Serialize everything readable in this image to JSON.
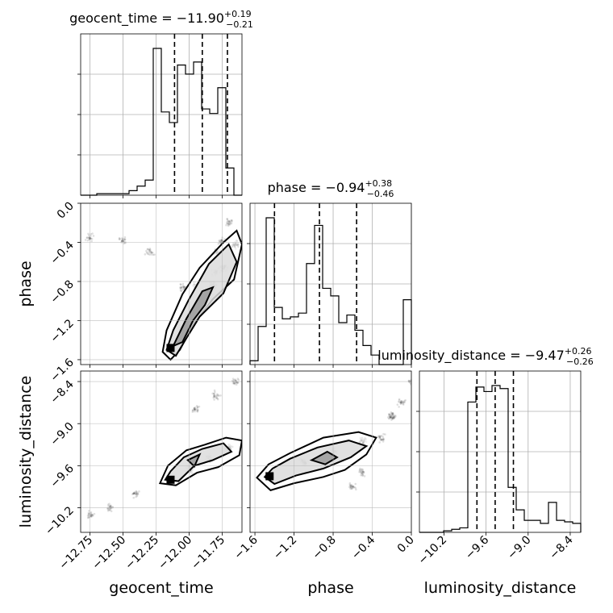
{
  "chart_data": {
    "type": "corner",
    "parameters": [
      {
        "name": "geocent_time",
        "xlabel": "geocent_time",
        "range": [
          -12.82,
          -11.6
        ],
        "ticks": [
          -12.75,
          -12.5,
          -12.25,
          -12.0,
          -11.75
        ],
        "tick_labels": [
          "−12.75",
          "−12.50",
          "−12.25",
          "−12.00",
          "−11.75"
        ],
        "title": {
          "main": "geocent_time = −11.90",
          "sup": "+0.19",
          "sub": "−0.21"
        },
        "quantiles": [
          -12.11,
          -11.9,
          -11.71
        ],
        "histogram": {
          "edges": [
            -12.82,
            -12.759,
            -12.698,
            -12.637,
            -12.576,
            -12.515,
            -12.454,
            -12.393,
            -12.332,
            -12.271,
            -12.21,
            -12.149,
            -12.088,
            -12.027,
            -11.966,
            -11.905,
            -11.844,
            -11.783,
            -11.722,
            -11.661,
            -11.6
          ],
          "counts": [
            0.0,
            0.0,
            0.01,
            0.01,
            0.01,
            0.01,
            0.03,
            0.06,
            0.1,
            0.97,
            0.55,
            0.48,
            0.86,
            0.8,
            0.88,
            0.57,
            0.54,
            0.71,
            0.18,
            0.0
          ]
        }
      },
      {
        "name": "phase",
        "ylabel": "phase",
        "xlabel": "phase",
        "range": [
          -1.65,
          0.0
        ],
        "ticks": [
          -1.6,
          -1.2,
          -0.8,
          -0.4,
          0.0
        ],
        "tick_labels": [
          "−1.6",
          "−1.2",
          "−0.8",
          "−0.4",
          "0.0"
        ],
        "title": {
          "main": "phase = −0.94",
          "sup": "+0.38",
          "sub": "−0.46"
        },
        "quantiles": [
          -1.4,
          -0.94,
          -0.56
        ],
        "histogram": {
          "edges": [
            -1.65,
            -1.5675,
            -1.485,
            -1.4025,
            -1.32,
            -1.2375,
            -1.155,
            -1.0725,
            -0.99,
            -0.9075,
            -0.825,
            -0.7425,
            -0.66,
            -0.5775,
            -0.495,
            -0.4125,
            -0.33,
            -0.2475,
            -0.165,
            -0.0825,
            0.0
          ],
          "counts": [
            0.02,
            0.2,
            0.77,
            0.3,
            0.24,
            0.25,
            0.27,
            0.53,
            0.73,
            0.4,
            0.36,
            0.22,
            0.26,
            0.18,
            0.1,
            0.05,
            0.0,
            0.0,
            0.0,
            0.34
          ]
        }
      },
      {
        "name": "luminosity_distance",
        "ylabel": "luminosity_distance",
        "xlabel": "luminosity_distance",
        "range": [
          -10.55,
          -8.25
        ],
        "ticks": [
          -10.2,
          -9.6,
          -9.0,
          -8.4
        ],
        "tick_labels": [
          "−10.2",
          "−9.6",
          "−9.0",
          "−8.4"
        ],
        "title": {
          "main": "luminosity_distance = −9.47",
          "sup": "+0.26",
          "sub": "−0.26"
        },
        "quantiles": [
          -9.73,
          -9.47,
          -9.21
        ],
        "histogram": {
          "edges": [
            -10.55,
            -10.435,
            -10.32,
            -10.205,
            -10.09,
            -9.975,
            -9.86,
            -9.745,
            -9.63,
            -9.515,
            -9.4,
            -9.285,
            -9.17,
            -9.055,
            -8.94,
            -8.825,
            -8.71,
            -8.595,
            -8.48,
            -8.365,
            -8.25
          ],
          "counts": [
            0.0,
            0.0,
            0.0,
            0.01,
            0.02,
            0.03,
            0.87,
            0.97,
            0.94,
            0.98,
            0.96,
            0.3,
            0.15,
            0.08,
            0.08,
            0.06,
            0.2,
            0.08,
            0.07,
            0.06
          ]
        }
      }
    ],
    "pairs": [
      {
        "x": "geocent_time",
        "y": "phase",
        "ridge": [
          [
            -12.14,
            -1.48
          ],
          [
            -12.05,
            -1.28
          ],
          [
            -11.98,
            -1.12
          ],
          [
            -11.9,
            -0.98
          ],
          [
            -11.82,
            -0.84
          ],
          [
            -11.74,
            -0.66
          ],
          [
            -11.65,
            -0.43
          ]
        ],
        "cloud": [
          [
            -12.05,
            -0.86
          ],
          [
            -11.95,
            -0.84
          ],
          [
            -11.85,
            -0.9
          ],
          [
            -11.8,
            -0.7
          ],
          [
            -11.75,
            -0.4
          ],
          [
            -11.7,
            -0.2
          ],
          [
            -11.78,
            -0.5
          ],
          [
            -12.3,
            -0.5
          ],
          [
            -12.5,
            -0.38
          ],
          [
            -12.75,
            -0.35
          ]
        ],
        "levels": [
          [
            [
              -12.2,
              -1.52
            ],
            [
              -12.14,
              -1.6
            ],
            [
              -12.07,
              -1.5
            ],
            [
              -11.96,
              -1.22
            ],
            [
              -11.82,
              -0.98
            ],
            [
              -11.66,
              -0.78
            ],
            [
              -11.6,
              -0.42
            ],
            [
              -11.64,
              -0.28
            ],
            [
              -11.74,
              -0.4
            ],
            [
              -11.92,
              -0.66
            ],
            [
              -12.05,
              -0.93
            ],
            [
              -12.17,
              -1.3
            ]
          ],
          [
            [
              -12.17,
              -1.5
            ],
            [
              -12.1,
              -1.56
            ],
            [
              -12.02,
              -1.38
            ],
            [
              -11.92,
              -1.16
            ],
            [
              -11.74,
              -0.92
            ],
            [
              -11.64,
              -0.6
            ],
            [
              -11.7,
              -0.42
            ],
            [
              -11.85,
              -0.62
            ],
            [
              -12.0,
              -0.98
            ],
            [
              -12.12,
              -1.3
            ]
          ],
          [
            [
              -12.12,
              -1.46
            ],
            [
              -12.05,
              -1.42
            ],
            [
              -11.97,
              -1.2
            ],
            [
              -11.88,
              -1.04
            ],
            [
              -11.82,
              -0.86
            ],
            [
              -11.9,
              -0.9
            ],
            [
              -12.02,
              -1.18
            ]
          ]
        ]
      },
      {
        "x": "geocent_time",
        "y": "luminosity_distance",
        "ridge": [
          [
            -12.14,
            -9.8
          ],
          [
            -12.0,
            -9.65
          ],
          [
            -11.85,
            -9.5
          ],
          [
            -11.7,
            -9.35
          ]
        ],
        "cloud": [
          [
            -12.4,
            -10.0
          ],
          [
            -12.6,
            -10.2
          ],
          [
            -12.75,
            -10.3
          ],
          [
            -11.95,
            -8.8
          ],
          [
            -11.8,
            -8.6
          ],
          [
            -11.65,
            -8.4
          ]
        ],
        "levels": [
          [
            [
              -12.22,
              -9.85
            ],
            [
              -12.1,
              -9.88
            ],
            [
              -11.94,
              -9.7
            ],
            [
              -11.78,
              -9.62
            ],
            [
              -11.62,
              -9.45
            ],
            [
              -11.6,
              -9.24
            ],
            [
              -11.72,
              -9.2
            ],
            [
              -11.88,
              -9.3
            ],
            [
              -12.02,
              -9.38
            ],
            [
              -12.16,
              -9.6
            ]
          ],
          [
            [
              -12.18,
              -9.8
            ],
            [
              -12.08,
              -9.82
            ],
            [
              -11.96,
              -9.6
            ],
            [
              -11.82,
              -9.52
            ],
            [
              -11.68,
              -9.4
            ],
            [
              -11.74,
              -9.28
            ],
            [
              -11.9,
              -9.36
            ],
            [
              -12.04,
              -9.48
            ],
            [
              -12.14,
              -9.68
            ]
          ],
          [
            [
              -12.01,
              -9.52
            ],
            [
              -11.96,
              -9.61
            ],
            [
              -11.92,
              -9.44
            ]
          ]
        ]
      },
      {
        "x": "phase",
        "y": "luminosity_distance",
        "ridge": [
          [
            -1.45,
            -9.75
          ],
          [
            -1.1,
            -9.55
          ],
          [
            -0.8,
            -9.4
          ],
          [
            -0.5,
            -9.25
          ],
          [
            -0.2,
            -8.9
          ]
        ],
        "cloud": [
          [
            -0.6,
            -9.9
          ],
          [
            -0.5,
            -9.7
          ],
          [
            -0.3,
            -9.2
          ],
          [
            -0.1,
            -8.7
          ],
          [
            0.0,
            -8.4
          ]
        ],
        "levels": [
          [
            [
              -1.58,
              -9.77
            ],
            [
              -1.44,
              -9.95
            ],
            [
              -1.2,
              -9.85
            ],
            [
              -0.9,
              -9.76
            ],
            [
              -0.68,
              -9.66
            ],
            [
              -0.46,
              -9.44
            ],
            [
              -0.36,
              -9.2
            ],
            [
              -0.54,
              -9.12
            ],
            [
              -0.9,
              -9.2
            ],
            [
              -1.24,
              -9.42
            ],
            [
              -1.46,
              -9.58
            ]
          ],
          [
            [
              -1.5,
              -9.76
            ],
            [
              -1.4,
              -9.86
            ],
            [
              -1.18,
              -9.74
            ],
            [
              -0.9,
              -9.64
            ],
            [
              -0.62,
              -9.48
            ],
            [
              -0.46,
              -9.32
            ],
            [
              -0.64,
              -9.24
            ],
            [
              -0.96,
              -9.34
            ],
            [
              -1.24,
              -9.5
            ],
            [
              -1.42,
              -9.64
            ]
          ],
          [
            [
              -1.02,
              -9.52
            ],
            [
              -0.88,
              -9.58
            ],
            [
              -0.76,
              -9.48
            ],
            [
              -0.86,
              -9.4
            ]
          ]
        ]
      }
    ],
    "grid": true,
    "show_titles": true,
    "quantile_lines": "dashed"
  }
}
